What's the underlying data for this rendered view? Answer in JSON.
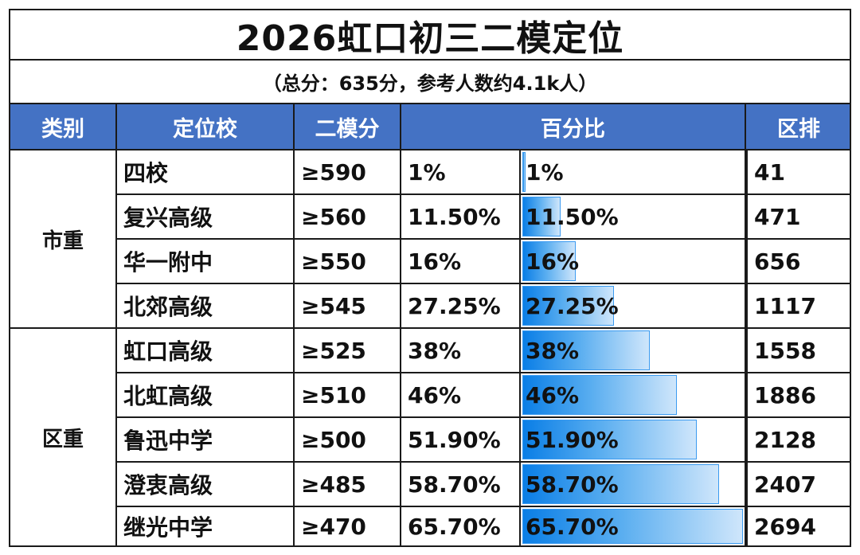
{
  "title": "2026虹口初三二模定位",
  "subtitle": "（总分：635分，参考人数约4.1k人）",
  "header": {
    "category": "类别",
    "school": "定位校",
    "score": "二模分",
    "percent": "百分比",
    "rank": "区排"
  },
  "categories": [
    {
      "label": "市重",
      "rows": 4
    },
    {
      "label": "区重",
      "rows": 5
    }
  ],
  "rows": [
    {
      "school": "四校",
      "score": "≥590",
      "percent": "1%",
      "percent_value": 1,
      "rank": "41"
    },
    {
      "school": "复兴高级",
      "score": "≥560",
      "percent": "11.50%",
      "percent_value": 11.5,
      "rank": "471"
    },
    {
      "school": "华一附中",
      "score": "≥550",
      "percent": "16%",
      "percent_value": 16,
      "rank": "656"
    },
    {
      "school": "北郊高级",
      "score": "≥545",
      "percent": "27.25%",
      "percent_value": 27.25,
      "rank": "1117"
    },
    {
      "school": "虹口高级",
      "score": "≥525",
      "percent": "38%",
      "percent_value": 38,
      "rank": "1558"
    },
    {
      "school": "北虹高级",
      "score": "≥510",
      "percent": "46%",
      "percent_value": 46,
      "rank": "1886"
    },
    {
      "school": "鲁迅中学",
      "score": "≥500",
      "percent": "51.90%",
      "percent_value": 51.9,
      "rank": "2128"
    },
    {
      "school": "澄衷高级",
      "score": "≥485",
      "percent": "58.70%",
      "percent_value": 58.7,
      "rank": "2407"
    },
    {
      "school": "继光中学",
      "score": "≥470",
      "percent": "65.70%",
      "percent_value": 65.7,
      "rank": "2694"
    }
  ],
  "bar_max": 65.7,
  "colors": {
    "header_bg": "#4472c4",
    "header_text": "#ffffff",
    "bar_start": "#0a7ee6",
    "bar_end": "#cfe6fb",
    "border": "#1a1a1a"
  }
}
